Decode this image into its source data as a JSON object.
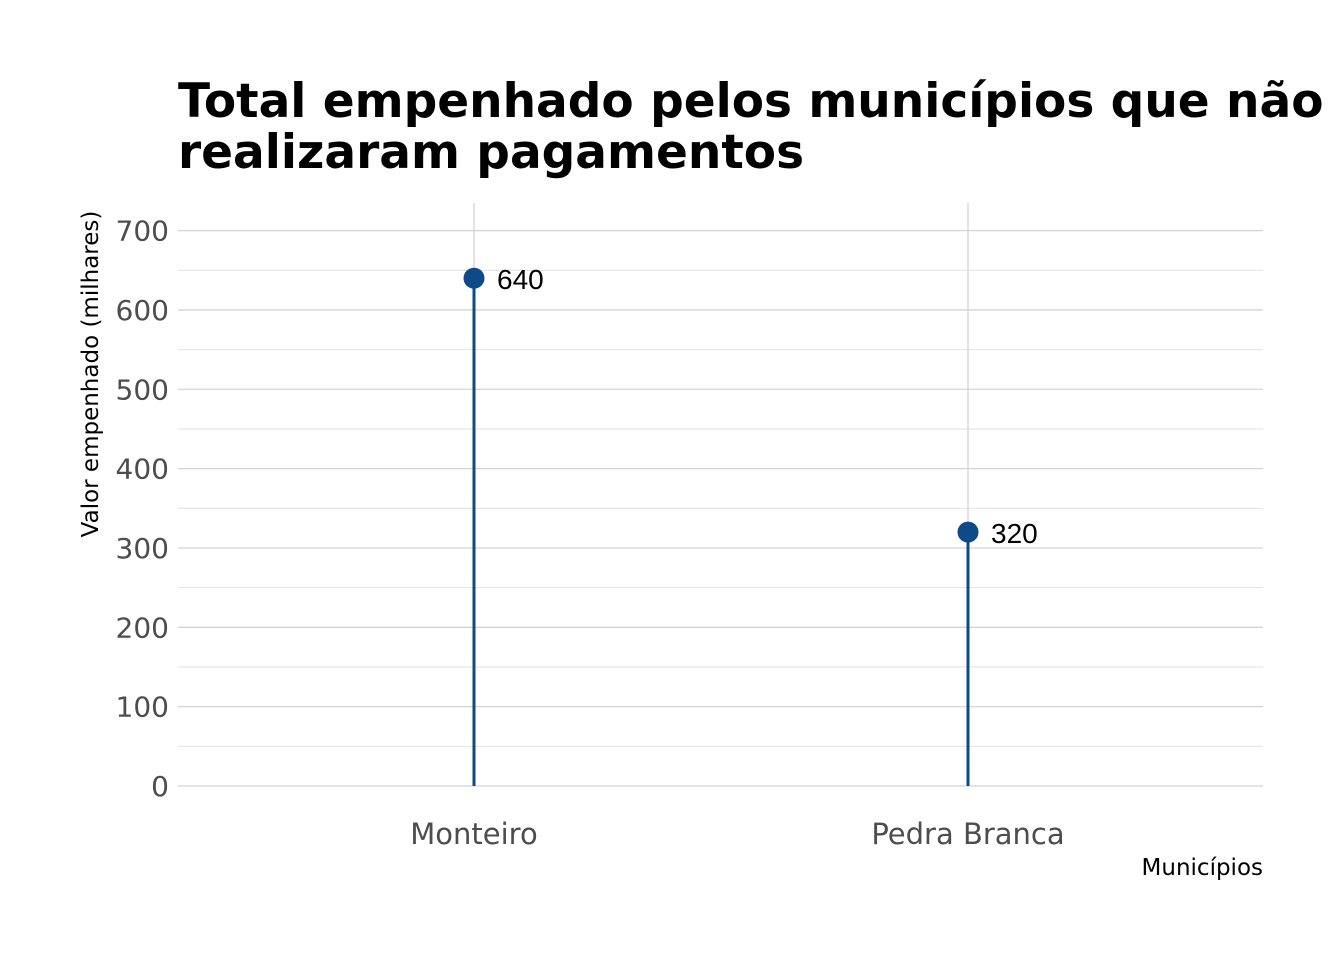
{
  "chart_data": {
    "type": "lollipop",
    "title_lines": [
      "Total empenhado pelos municípios que não",
      "realizaram pagamentos"
    ],
    "xlabel": "Municípios",
    "ylabel": "Valor empenhado (milhares)",
    "categories": [
      "Monteiro",
      "Pedra Branca"
    ],
    "values": [
      640,
      320
    ],
    "data_labels": [
      "640",
      "320"
    ],
    "ylim": [
      0,
      735
    ],
    "y_ticks": [
      0,
      100,
      200,
      300,
      400,
      500,
      600,
      700
    ],
    "y_minor_ticks": [
      50,
      150,
      250,
      350,
      450,
      550,
      650
    ],
    "grid": true,
    "legend": "none",
    "colors": {
      "series": "#0d4a87",
      "grid_major": "#d4d4d4",
      "grid_minor": "#e2e2e2",
      "tick_text": "#4d4d4d"
    }
  }
}
